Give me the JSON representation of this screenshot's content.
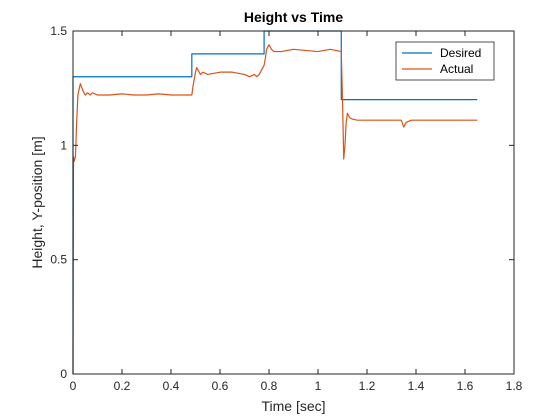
{
  "chart_data": {
    "type": "line",
    "title": "Height vs Time",
    "xlabel": "Time [sec]",
    "ylabel": "Height, Y-position [m]",
    "xlim": [
      0,
      1.8
    ],
    "ylim": [
      0,
      1.5
    ],
    "xticks": [
      0,
      0.2,
      0.4,
      0.6,
      0.8,
      1,
      1.2,
      1.4,
      1.6,
      1.8
    ],
    "xtick_labels": [
      "0",
      "0.2",
      "0.4",
      "0.6",
      "0.8",
      "1",
      "1.2",
      "1.4",
      "1.6",
      "1.8"
    ],
    "yticks": [
      0,
      0.5,
      1,
      1.5
    ],
    "ytick_labels": [
      "0",
      "0.5",
      "1",
      "1.5"
    ],
    "grid": false,
    "legend_position": "top-right",
    "series": [
      {
        "name": "Desired",
        "color": "#0072BD",
        "x": [
          0,
          0,
          0.485,
          0.485,
          0.78,
          0.78,
          1.095,
          1.095,
          1.65
        ],
        "y": [
          0,
          1.3,
          1.3,
          1.4,
          1.4,
          1.5,
          1.5,
          1.2,
          1.2
        ]
      },
      {
        "name": "Actual",
        "color": "#D95319",
        "x": [
          0,
          0.002,
          0.005,
          0.01,
          0.015,
          0.02,
          0.03,
          0.04,
          0.05,
          0.06,
          0.07,
          0.08,
          0.1,
          0.15,
          0.2,
          0.25,
          0.3,
          0.35,
          0.4,
          0.45,
          0.485,
          0.49,
          0.5,
          0.505,
          0.51,
          0.52,
          0.53,
          0.55,
          0.6,
          0.65,
          0.7,
          0.72,
          0.74,
          0.75,
          0.76,
          0.78,
          0.785,
          0.79,
          0.8,
          0.81,
          0.82,
          0.85,
          0.9,
          0.95,
          1.0,
          1.05,
          1.095,
          1.1,
          1.105,
          1.11,
          1.115,
          1.12,
          1.13,
          1.14,
          1.16,
          1.2,
          1.25,
          1.3,
          1.34,
          1.35,
          1.36,
          1.38,
          1.4,
          1.45,
          1.5,
          1.55,
          1.6,
          1.65
        ],
        "y": [
          0,
          0.95,
          0.93,
          0.95,
          1.1,
          1.22,
          1.27,
          1.24,
          1.22,
          1.23,
          1.22,
          1.23,
          1.22,
          1.22,
          1.225,
          1.22,
          1.22,
          1.225,
          1.22,
          1.22,
          1.22,
          1.26,
          1.32,
          1.34,
          1.33,
          1.31,
          1.32,
          1.31,
          1.32,
          1.32,
          1.31,
          1.3,
          1.31,
          1.3,
          1.31,
          1.35,
          1.38,
          1.42,
          1.44,
          1.42,
          1.41,
          1.41,
          1.42,
          1.415,
          1.41,
          1.42,
          1.41,
          1.2,
          0.94,
          1.0,
          1.1,
          1.14,
          1.12,
          1.115,
          1.11,
          1.11,
          1.11,
          1.11,
          1.11,
          1.08,
          1.1,
          1.11,
          1.11,
          1.11,
          1.11,
          1.11,
          1.11,
          1.11
        ]
      }
    ]
  }
}
